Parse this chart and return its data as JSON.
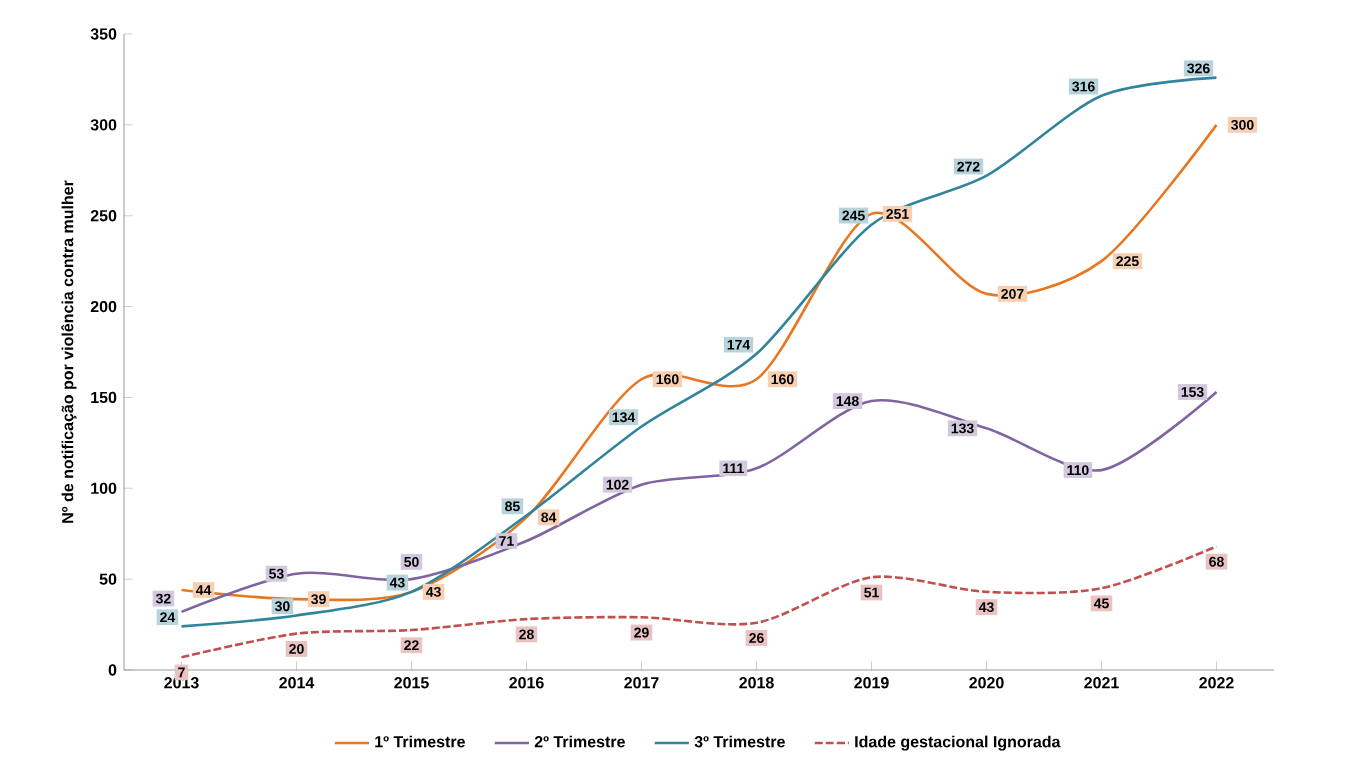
{
  "chart_data": {
    "type": "line",
    "ylabel": "Nº de notificação por violência contra mulher",
    "categories": [
      "2013",
      "2014",
      "2015",
      "2016",
      "2017",
      "2018",
      "2019",
      "2020",
      "2021",
      "2022"
    ],
    "series": [
      {
        "name": "1º Trimestre",
        "color": "#e87722",
        "values": [
          44,
          39,
          43,
          84,
          160,
          160,
          251,
          207,
          225,
          300
        ]
      },
      {
        "name": "2º Trimestre",
        "color": "#8064a2",
        "values": [
          32,
          53,
          50,
          71,
          102,
          111,
          148,
          133,
          110,
          153
        ]
      },
      {
        "name": "3º Trimestre",
        "color": "#31849b",
        "values": [
          24,
          30,
          43,
          85,
          134,
          174,
          245,
          272,
          316,
          326
        ]
      },
      {
        "name": "Idade gestacional Ignorada",
        "color": "#c0504d",
        "line_style": "dashed",
        "values": [
          7,
          20,
          22,
          28,
          29,
          26,
          51,
          43,
          45,
          68
        ]
      }
    ],
    "ylim": [
      0,
      350
    ],
    "yticks": [
      0,
      50,
      100,
      150,
      200,
      250,
      300,
      350
    ],
    "data_labels": true,
    "legend": "bottom",
    "grid": false,
    "marker": "none",
    "line_style": "solid"
  }
}
